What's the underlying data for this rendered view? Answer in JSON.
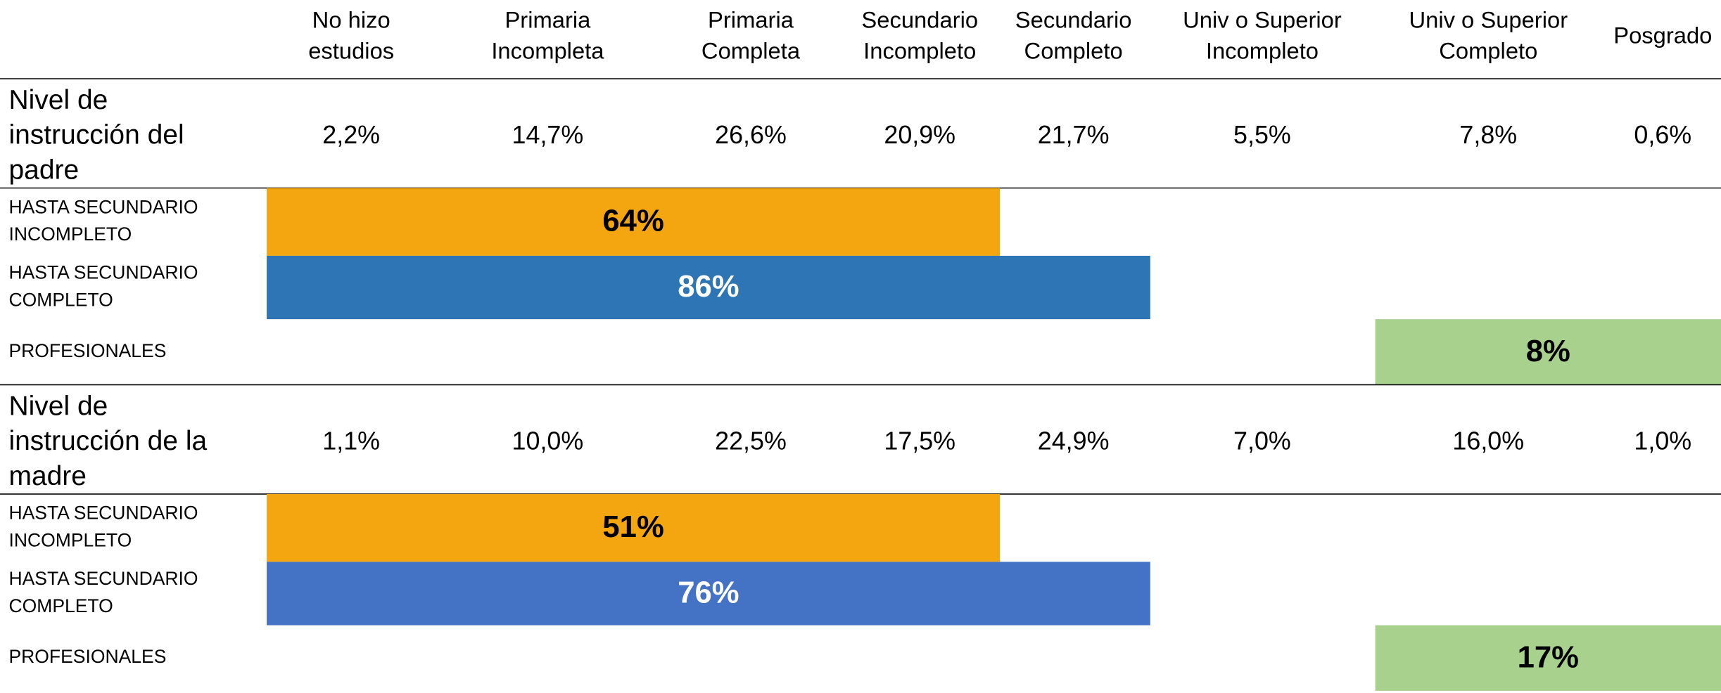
{
  "columns": [
    [
      "No hizo",
      "estudios"
    ],
    [
      "Primaria",
      "Incompleta"
    ],
    [
      "Primaria",
      "Completa"
    ],
    [
      "Secundario",
      "Incompleto"
    ],
    [
      "Secundario",
      "Completo"
    ],
    [
      "Univ o Superior",
      "Incompleto"
    ],
    [
      "Univ o Superior",
      "Completo"
    ],
    [
      "Posgrado"
    ]
  ],
  "sections": [
    {
      "title": [
        "Nivel de",
        "instrucción del",
        "padre"
      ],
      "values": [
        "2,2%",
        "14,7%",
        "26,6%",
        "20,9%",
        "21,7%",
        "5,5%",
        "7,8%",
        "0,6%"
      ],
      "groups": [
        {
          "label": [
            "HASTA SECUNDARIO",
            "INCOMPLETO"
          ],
          "value": "64%"
        },
        {
          "label": [
            "HASTA SECUNDARIO",
            "COMPLETO"
          ],
          "value": "86%"
        },
        {
          "label": [
            "PROFESIONALES"
          ],
          "value": "8%"
        }
      ]
    },
    {
      "title": [
        "Nivel de",
        "instrucción de la",
        "madre"
      ],
      "values": [
        "1,1%",
        "10,0%",
        "22,5%",
        "17,5%",
        "24,9%",
        "7,0%",
        "16,0%",
        "1,0%"
      ],
      "groups": [
        {
          "label": [
            "HASTA SECUNDARIO",
            "INCOMPLETO"
          ],
          "value": "51%"
        },
        {
          "label": [
            "HASTA SECUNDARIO",
            "COMPLETO"
          ],
          "value": "76%"
        },
        {
          "label": [
            "PROFESIONALES"
          ],
          "value": "17%"
        }
      ]
    }
  ]
}
